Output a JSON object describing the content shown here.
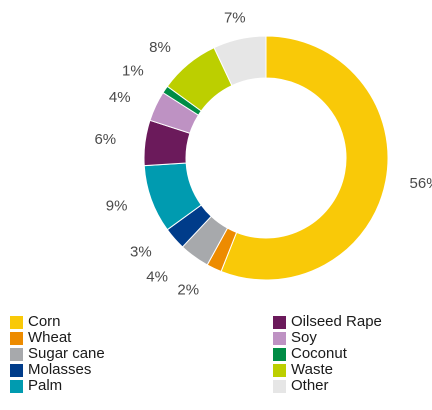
{
  "chart_data": {
    "type": "pie",
    "variant": "donut",
    "title": "",
    "legend_position": "bottom",
    "categories": [
      "Corn",
      "Wheat",
      "Sugar cane",
      "Molasses",
      "Palm",
      "Oilseed Rape",
      "Soy",
      "Coconut",
      "Waste",
      "Other"
    ],
    "values": [
      56,
      2,
      4,
      3,
      9,
      6,
      4,
      1,
      8,
      7
    ],
    "data_labels": [
      "56%",
      "2%",
      "4%",
      "3%",
      "9%",
      "6%",
      "4%",
      "1%",
      "8%",
      "7%"
    ],
    "colors": [
      "#F9C908",
      "#ED8B00",
      "#A7A9AC",
      "#003C8A",
      "#009BB0",
      "#6B1A5B",
      "#BE92C3",
      "#008C45",
      "#BCCF00",
      "#E6E6E6"
    ]
  },
  "legend": {
    "left": [
      {
        "label": "Corn",
        "color": "#F9C908"
      },
      {
        "label": "Wheat",
        "color": "#ED8B00"
      },
      {
        "label": "Sugar cane",
        "color": "#A7A9AC"
      },
      {
        "label": "Molasses",
        "color": "#003C8A"
      },
      {
        "label": "Palm",
        "color": "#009BB0"
      }
    ],
    "right": [
      {
        "label": "Oilseed Rape",
        "color": "#6B1A5B"
      },
      {
        "label": "Soy",
        "color": "#BE92C3"
      },
      {
        "label": "Coconut",
        "color": "#008C45"
      },
      {
        "label": "Waste",
        "color": "#BCCF00"
      },
      {
        "label": "Other",
        "color": "#E6E6E6"
      }
    ]
  }
}
